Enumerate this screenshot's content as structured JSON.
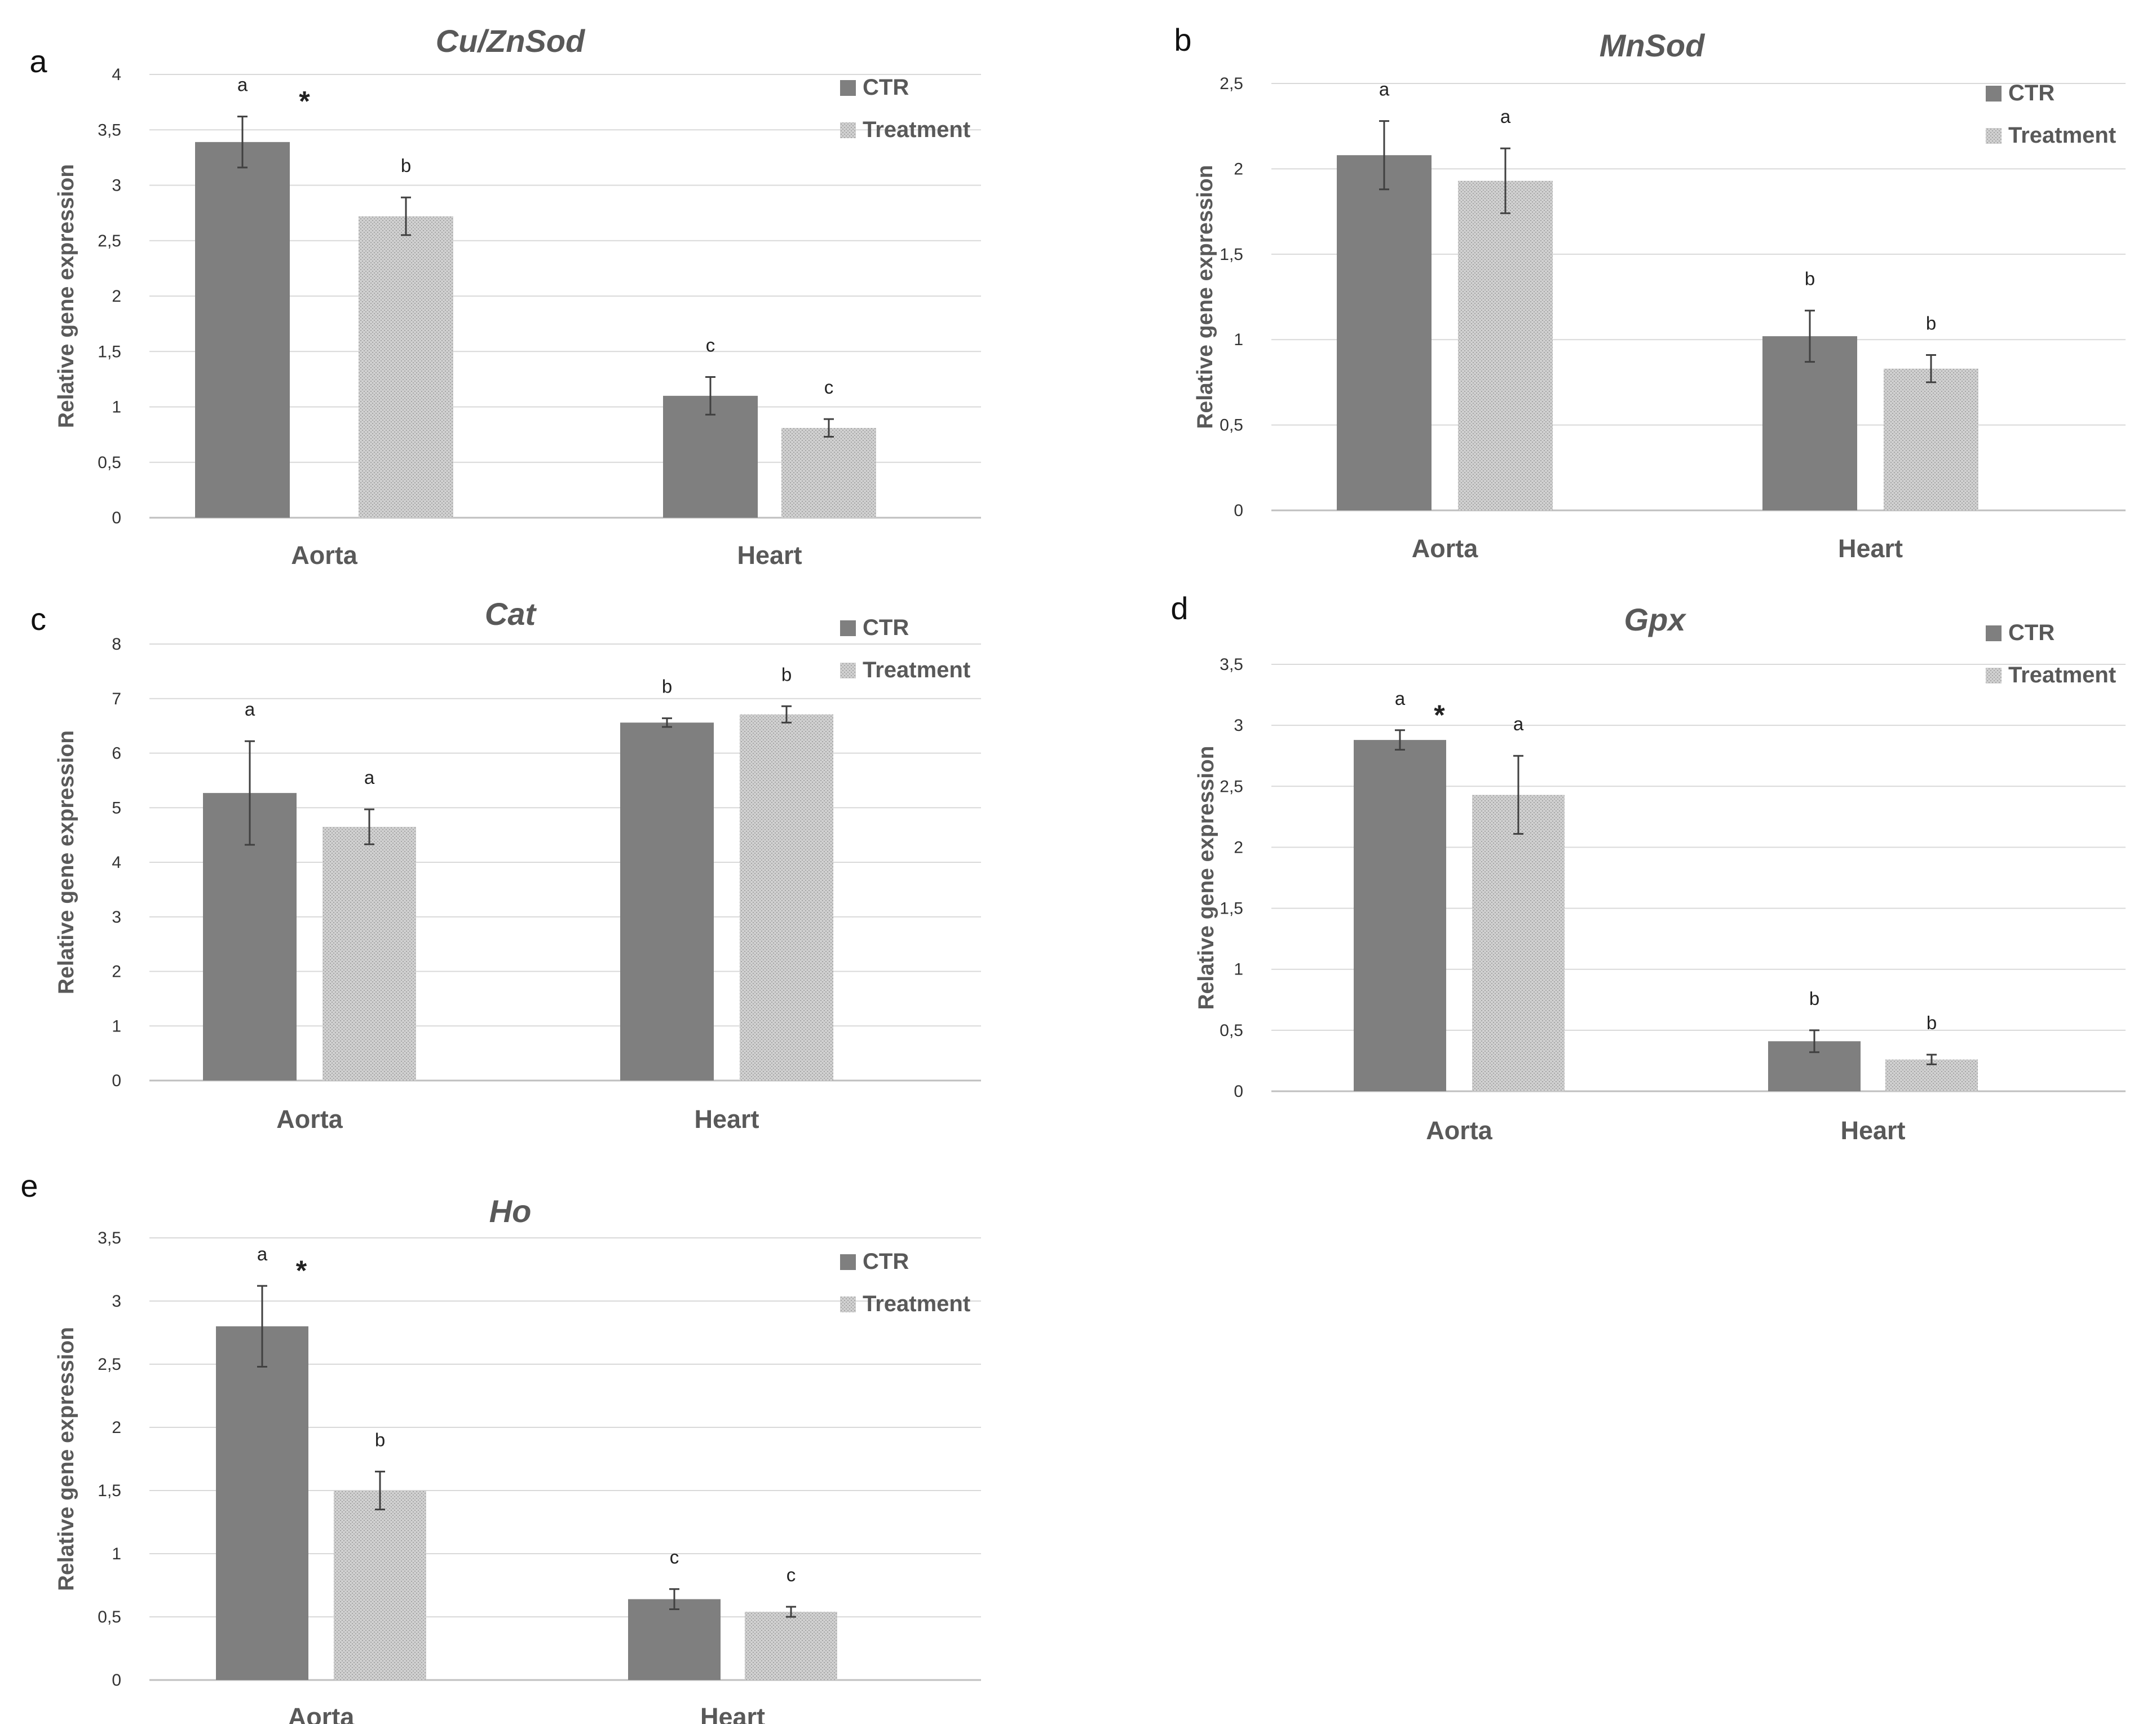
{
  "figure": {
    "panels": [
      {
        "letter": "a"
      },
      {
        "letter": "b"
      },
      {
        "letter": "c"
      },
      {
        "letter": "d"
      },
      {
        "letter": "e"
      }
    ]
  },
  "colors": {
    "ctr": "#7f7f7f",
    "treatment_fill": "#d0d0d0",
    "treatment_hatch": "#a6a6a6",
    "grid": "#d9d9d9",
    "axis_text": "#595959"
  },
  "chart_data": [
    {
      "type": "bar",
      "title": "Cu/ZnSod",
      "ylabel": "Relative gene expression",
      "xlabel": "",
      "categories": [
        "Aorta",
        "Heart"
      ],
      "ylim": [
        0,
        4
      ],
      "yticks": [
        0,
        0.5,
        1,
        1.5,
        2,
        2.5,
        3,
        3.5,
        4
      ],
      "ytick_labels": [
        "0",
        "0,5",
        "1",
        "1,5",
        "2",
        "2,5",
        "3",
        "3,5",
        "4"
      ],
      "grid": true,
      "legend": "top-right",
      "series": [
        {
          "name": "CTR",
          "values": [
            3.39,
            1.1
          ],
          "errors": [
            0.23,
            0.17
          ],
          "labels": [
            "a",
            "c"
          ]
        },
        {
          "name": "Treatment",
          "values": [
            2.72,
            0.81
          ],
          "errors": [
            0.17,
            0.08
          ],
          "labels": [
            "b",
            "c"
          ]
        }
      ],
      "asterisk_categories": [
        "Aorta"
      ]
    },
    {
      "type": "bar",
      "title": "MnSod",
      "ylabel": "Relative gene expression",
      "xlabel": "",
      "categories": [
        "Aorta",
        "Heart"
      ],
      "ylim": [
        0,
        2.5
      ],
      "yticks": [
        0,
        0.5,
        1,
        1.5,
        2,
        2.5
      ],
      "ytick_labels": [
        "0",
        "0,5",
        "1",
        "1,5",
        "2",
        "2,5"
      ],
      "grid": true,
      "legend": "top-right",
      "series": [
        {
          "name": "CTR",
          "values": [
            2.08,
            1.02
          ],
          "errors": [
            0.2,
            0.15
          ],
          "labels": [
            "a",
            "b"
          ]
        },
        {
          "name": "Treatment",
          "values": [
            1.93,
            0.83
          ],
          "errors": [
            0.19,
            0.08
          ],
          "labels": [
            "a",
            "b"
          ]
        }
      ],
      "asterisk_categories": []
    },
    {
      "type": "bar",
      "title": "Cat",
      "ylabel": "Relative gene expression",
      "xlabel": "",
      "categories": [
        "Aorta",
        "Heart"
      ],
      "ylim": [
        0,
        8
      ],
      "yticks": [
        0,
        1,
        2,
        3,
        4,
        5,
        6,
        7,
        8
      ],
      "ytick_labels": [
        "0",
        "1",
        "2",
        "3",
        "4",
        "5",
        "6",
        "7",
        "8"
      ],
      "grid": true,
      "legend": "top-right",
      "series": [
        {
          "name": "CTR",
          "values": [
            5.27,
            6.56
          ],
          "errors": [
            0.95,
            0.08
          ],
          "labels": [
            "a",
            "b"
          ]
        },
        {
          "name": "Treatment",
          "values": [
            4.65,
            6.71
          ],
          "errors": [
            0.32,
            0.15
          ],
          "labels": [
            "a",
            "b"
          ]
        }
      ],
      "asterisk_categories": []
    },
    {
      "type": "bar",
      "title": "Gpx",
      "ylabel": "Relative gene expression",
      "xlabel": "",
      "categories": [
        "Aorta",
        "Heart"
      ],
      "ylim": [
        0,
        3.5
      ],
      "yticks": [
        0,
        0.5,
        1,
        1.5,
        2,
        2.5,
        3,
        3.5
      ],
      "ytick_labels": [
        "0",
        "0,5",
        "1",
        "1,5",
        "2",
        "2,5",
        "3",
        "3,5"
      ],
      "grid": true,
      "legend": "top-right",
      "series": [
        {
          "name": "CTR",
          "values": [
            2.88,
            0.41
          ],
          "errors": [
            0.08,
            0.09
          ],
          "labels": [
            "a",
            "b"
          ]
        },
        {
          "name": "Treatment",
          "values": [
            2.43,
            0.26
          ],
          "errors": [
            0.32,
            0.04
          ],
          "labels": [
            "a",
            "b"
          ]
        }
      ],
      "asterisk_categories": [
        "Aorta"
      ]
    },
    {
      "type": "bar",
      "title": "Ho",
      "ylabel": "Relative gene expression",
      "xlabel": "",
      "categories": [
        "Aorta",
        "Heart"
      ],
      "ylim": [
        0,
        3.5
      ],
      "yticks": [
        0,
        0.5,
        1,
        1.5,
        2,
        2.5,
        3,
        3.5
      ],
      "ytick_labels": [
        "0",
        "0,5",
        "1",
        "1,5",
        "2",
        "2,5",
        "3",
        "3,5"
      ],
      "grid": true,
      "legend": "top-right",
      "series": [
        {
          "name": "CTR",
          "values": [
            2.8,
            0.64
          ],
          "errors": [
            0.32,
            0.08
          ],
          "labels": [
            "a",
            "c"
          ]
        },
        {
          "name": "Treatment",
          "values": [
            1.5,
            0.54
          ],
          "errors": [
            0.15,
            0.04
          ],
          "labels": [
            "b",
            "c"
          ]
        }
      ],
      "asterisk_categories": [
        "Aorta"
      ]
    }
  ],
  "asterisk_symbol": "*"
}
